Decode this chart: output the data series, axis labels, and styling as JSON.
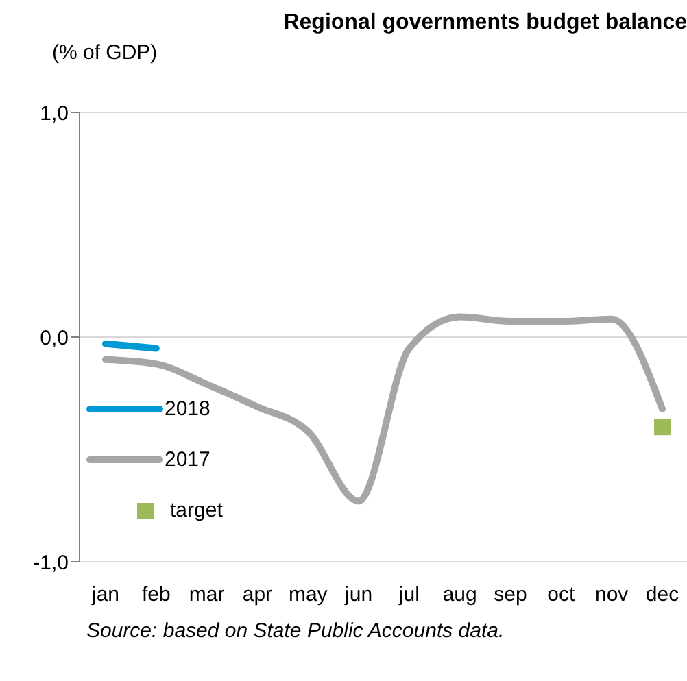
{
  "chart_data": {
    "type": "line",
    "title": "Regional governments budget balance",
    "ylabel": "(% of GDP)",
    "categories": [
      "jan",
      "feb",
      "mar",
      "apr",
      "may",
      "jun",
      "jul",
      "aug",
      "sep",
      "oct",
      "nov",
      "dec"
    ],
    "series": [
      {
        "name": "2018",
        "color": "#0099d4",
        "values": [
          -0.03,
          -0.05,
          null,
          null,
          null,
          null,
          null,
          null,
          null,
          null,
          null,
          null
        ]
      },
      {
        "name": "2017",
        "color": "#a6a6a6",
        "values": [
          -0.1,
          -0.12,
          -0.21,
          -0.31,
          -0.42,
          -0.73,
          -0.05,
          0.09,
          0.07,
          0.07,
          0.08,
          -0.32
        ]
      },
      {
        "name": "target",
        "type": "scatter",
        "marker": "square",
        "color": "#9bbb59",
        "values": [
          null,
          null,
          null,
          null,
          null,
          null,
          null,
          null,
          null,
          null,
          null,
          -0.4
        ]
      }
    ],
    "ylim": [
      -1,
      1
    ],
    "yticks": [
      {
        "value": -1,
        "label": "-1,0"
      },
      {
        "value": 0,
        "label": "0,0"
      },
      {
        "value": 1,
        "label": "1,0"
      }
    ],
    "grid": "y",
    "legend": "left",
    "marker": "none",
    "annotations": [
      "Source: based on State Public Accounts data."
    ]
  }
}
